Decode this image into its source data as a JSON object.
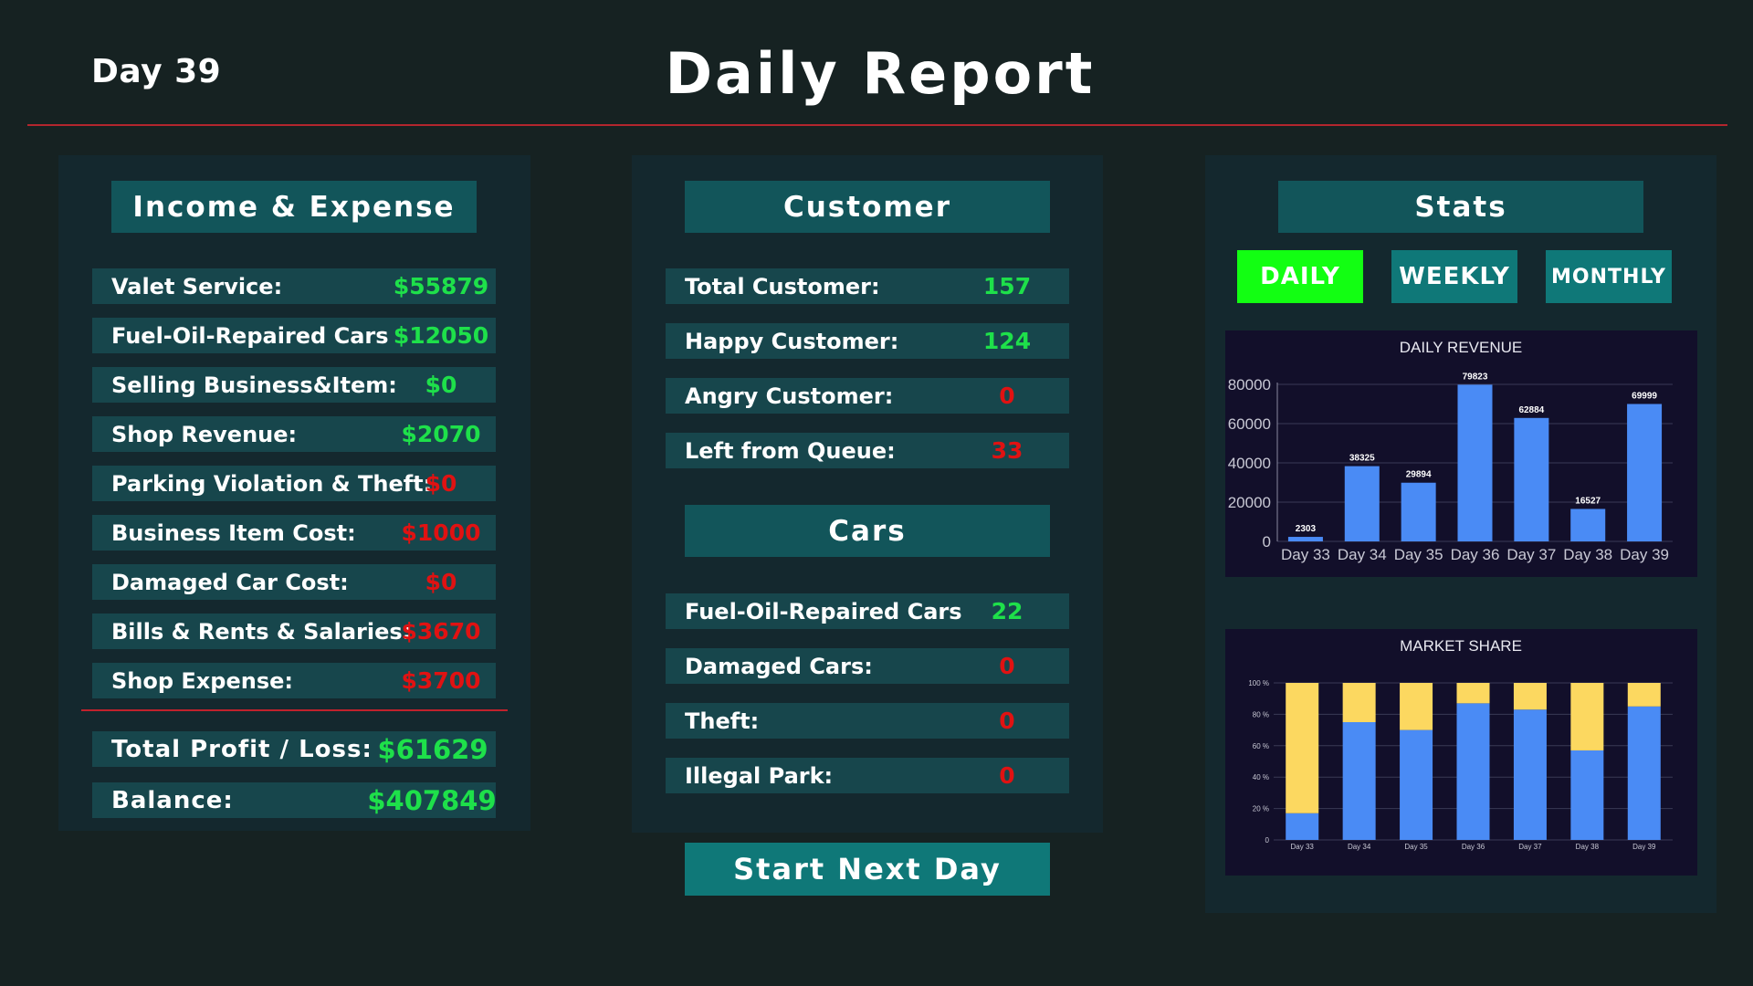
{
  "header": {
    "day": "Day 39",
    "title": "Daily Report"
  },
  "income": {
    "title": "Income & Expense",
    "rows": [
      {
        "label": "Valet Service:",
        "value": "$55879",
        "color": "green"
      },
      {
        "label": "Fuel-Oil-Repaired Cars",
        "value": "$12050",
        "color": "green"
      },
      {
        "label": "Selling Business&Item:",
        "value": "$0",
        "color": "green"
      },
      {
        "label": "Shop Revenue:",
        "value": "$2070",
        "color": "green"
      },
      {
        "label": "Parking Violation & Theft:",
        "value": "$0",
        "color": "red"
      },
      {
        "label": "Business Item Cost:",
        "value": "$1000",
        "color": "red"
      },
      {
        "label": "Damaged Car Cost:",
        "value": "$0",
        "color": "red"
      },
      {
        "label": "Bills & Rents & Salaries:",
        "value": "$3670",
        "color": "red"
      },
      {
        "label": "Shop Expense:",
        "value": "$3700",
        "color": "red"
      }
    ],
    "total_label": "Total Profit / Loss:",
    "total_value": "$61629",
    "balance_label": "Balance:",
    "balance_value": "$407849"
  },
  "customer": {
    "title": "Customer",
    "rows": [
      {
        "label": "Total Customer:",
        "value": "157",
        "color": "green"
      },
      {
        "label": "Happy Customer:",
        "value": "124",
        "color": "green"
      },
      {
        "label": "Angry Customer:",
        "value": "0",
        "color": "red"
      },
      {
        "label": "Left from Queue:",
        "value": "33",
        "color": "red"
      }
    ]
  },
  "cars": {
    "title": "Cars",
    "rows": [
      {
        "label": "Fuel-Oil-Repaired Cars",
        "value": "22",
        "color": "green"
      },
      {
        "label": "Damaged Cars:",
        "value": "0",
        "color": "red"
      },
      {
        "label": "Theft:",
        "value": "0",
        "color": "red"
      },
      {
        "label": "Illegal Park:",
        "value": "0",
        "color": "red"
      }
    ]
  },
  "start_button": "Start Next Day",
  "stats": {
    "title": "Stats",
    "tabs": [
      {
        "label": "DAILY",
        "active": true
      },
      {
        "label": "WEEKLY",
        "active": false
      },
      {
        "label": "MONTHLY",
        "active": false
      }
    ]
  },
  "colors": {
    "background": "#162222",
    "panel": "#14282e",
    "header": "#12555a",
    "row": "#17464c",
    "positive": "#1ee04a",
    "negative": "#e01212",
    "tab_active": "#12ff12",
    "tab_inactive": "#0f7878",
    "bar_blue": "#4a8bf5",
    "bar_yellow": "#fcd860"
  },
  "chart_data": [
    {
      "type": "bar",
      "title": "DAILY REVENUE",
      "categories": [
        "Day 33",
        "Day 34",
        "Day 35",
        "Day 36",
        "Day 37",
        "Day 38",
        "Day 39"
      ],
      "values": [
        2303,
        38325,
        29894,
        79823,
        62884,
        16527,
        69999
      ],
      "ylim": [
        0,
        80000
      ],
      "yticks": [
        0,
        20000,
        40000,
        60000,
        80000
      ],
      "grid": true,
      "legend": "none"
    },
    {
      "type": "bar",
      "stacked": true,
      "percent": true,
      "title": "MARKET SHARE",
      "categories": [
        "Day 33",
        "Day 34",
        "Day 35",
        "Day 36",
        "Day 37",
        "Day 38",
        "Day 39"
      ],
      "series": [
        {
          "values": [
            17,
            75,
            70,
            87,
            83,
            57,
            85
          ]
        },
        {
          "values": [
            83,
            25,
            30,
            13,
            17,
            43,
            15
          ]
        }
      ],
      "ylim": [
        0,
        100
      ],
      "yticks": [
        "0",
        "20 %",
        "40 %",
        "60 %",
        "80 %",
        "100 %"
      ],
      "grid": true,
      "legend": "none"
    }
  ]
}
